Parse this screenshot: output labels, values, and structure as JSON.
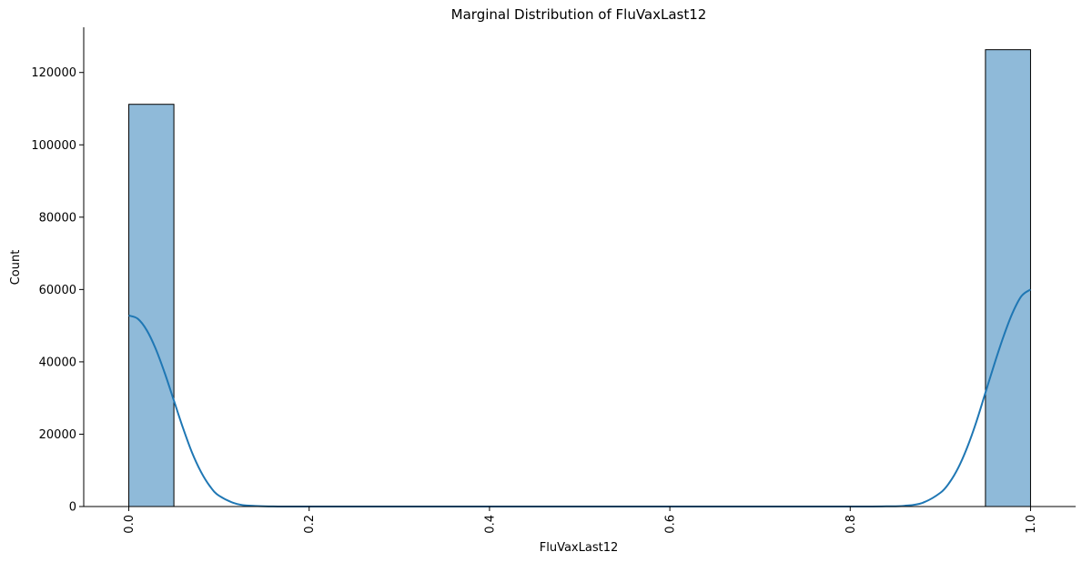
{
  "chart_data": {
    "type": "bar",
    "title": "Marginal Distribution of FluVaxLast12",
    "xlabel": "FluVaxLast12",
    "ylabel": "Count",
    "xlim": [
      -0.05,
      1.05
    ],
    "ylim": [
      0,
      132500
    ],
    "x_ticks": [
      0.0,
      0.2,
      0.4,
      0.6,
      0.8,
      1.0
    ],
    "x_tick_labels": [
      "0.0",
      "0.2",
      "0.4",
      "0.6",
      "0.8",
      "1.0"
    ],
    "y_ticks": [
      0,
      20000,
      40000,
      60000,
      80000,
      100000,
      120000
    ],
    "y_tick_labels": [
      "0",
      "20000",
      "40000",
      "60000",
      "80000",
      "100000",
      "120000"
    ],
    "bins": [
      {
        "x_start": 0.0,
        "x_end": 0.05,
        "count": 111200
      },
      {
        "x_start": 0.95,
        "x_end": 1.0,
        "count": 126300
      }
    ],
    "kde": {
      "x": [
        0.0,
        0.01,
        0.02,
        0.03,
        0.04,
        0.05,
        0.06,
        0.07,
        0.08,
        0.09,
        0.1,
        0.12,
        0.14,
        0.16,
        0.2,
        0.4,
        0.6,
        0.8,
        0.84,
        0.86,
        0.88,
        0.9,
        0.91,
        0.92,
        0.93,
        0.94,
        0.95,
        0.96,
        0.97,
        0.98,
        0.99,
        1.0
      ],
      "y": [
        52800,
        51900,
        48700,
        43500,
        36800,
        29300,
        21800,
        15000,
        9600,
        5600,
        3000,
        700,
        150,
        30,
        0,
        0,
        0,
        0,
        50,
        200,
        1000,
        3800,
        6600,
        10800,
        16500,
        23500,
        31500,
        39500,
        47000,
        53500,
        58200,
        60000
      ]
    },
    "grid": false,
    "colors": {
      "bar_fill": "#8fbad9",
      "bar_edge": "#000000",
      "kde_line": "#1f77b4"
    }
  }
}
